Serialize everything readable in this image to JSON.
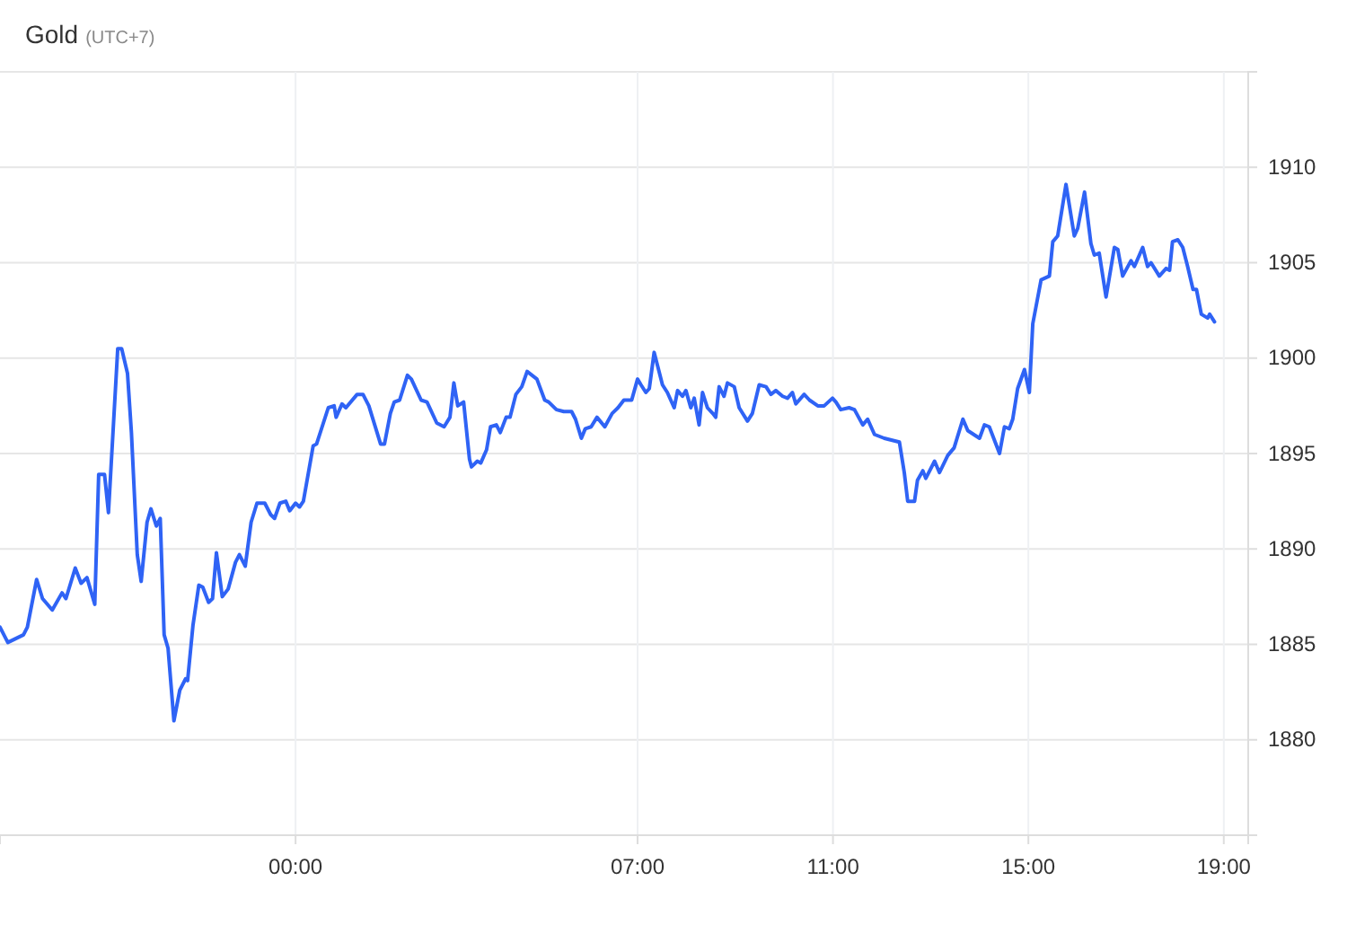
{
  "chart_data": {
    "type": "line",
    "title": "Gold",
    "subtitle": "(UTC+7)",
    "x": [
      -6.05,
      -5.89,
      -5.57,
      -5.49,
      -5.3,
      -5.18,
      -4.98,
      -4.78,
      -4.7,
      -4.51,
      -4.39,
      -4.27,
      -4.11,
      -4.03,
      -3.91,
      -3.83,
      -3.64,
      -3.56,
      -3.44,
      -3.36,
      -3.24,
      -3.16,
      -3.04,
      -2.96,
      -2.85,
      -2.77,
      -2.69,
      -2.61,
      -2.49,
      -2.37,
      -2.25,
      -2.21,
      -2.1,
      -1.98,
      -1.9,
      -1.78,
      -1.7,
      -1.62,
      -1.5,
      -1.38,
      -1.23,
      -1.15,
      -1.03,
      -0.91,
      -0.79,
      -0.63,
      -0.51,
      -0.43,
      -0.32,
      -0.2,
      -0.12,
      0,
      0.08,
      0.16,
      0.36,
      0.43,
      0.67,
      0.79,
      0.83,
      0.95,
      1.03,
      1.26,
      1.38,
      1.5,
      1.74,
      1.82,
      1.94,
      2.02,
      2.13,
      2.29,
      2.37,
      2.57,
      2.69,
      2.89,
      3.04,
      3.16,
      3.24,
      3.32,
      3.44,
      3.56,
      3.6,
      3.72,
      3.79,
      3.91,
      3.99,
      4.11,
      4.19,
      4.31,
      4.39,
      4.51,
      4.63,
      4.74,
      4.94,
      5.1,
      5.18,
      5.34,
      5.49,
      5.65,
      5.73,
      5.85,
      5.93,
      6.05,
      6.17,
      6.33,
      6.48,
      6.6,
      6.72,
      6.88,
      7,
      7.07,
      7.17,
      7.24,
      7.34,
      7.41,
      7.51,
      7.61,
      7.75,
      7.82,
      7.92,
      7.99,
      8.09,
      8.16,
      8.26,
      8.33,
      8.43,
      8.54,
      8.6,
      8.67,
      8.77,
      8.84,
      8.98,
      9.08,
      9.25,
      9.35,
      9.49,
      9.63,
      9.73,
      9.83,
      9.97,
      10.07,
      10.17,
      10.24,
      10.41,
      10.52,
      10.69,
      10.82,
      10.99,
      11.06,
      11.16,
      11.33,
      11.44,
      11.61,
      11.71,
      11.85,
      12.05,
      12.36,
      12.46,
      12.53,
      12.67,
      12.73,
      12.84,
      12.9,
      13.08,
      13.18,
      13.35,
      13.48,
      13.66,
      13.76,
      14,
      14.1,
      14.2,
      14.41,
      14.51,
      14.61,
      14.68,
      14.78,
      14.92,
      15.02,
      15.09,
      15.26,
      15.43,
      15.5,
      15.6,
      15.77,
      15.94,
      16.01,
      16.15,
      16.28,
      16.35,
      16.45,
      16.59,
      16.76,
      16.83,
      16.93,
      17.1,
      17.17,
      17.34,
      17.44,
      17.51,
      17.68,
      17.82,
      17.89,
      17.95,
      18.06,
      18.16,
      18.26,
      18.37,
      18.44,
      18.54,
      18.67,
      18.71,
      18.81
    ],
    "series": [
      {
        "color": "#2f63f5",
        "values": [
          1885.9,
          1885.1,
          1885.5,
          1885.9,
          1888.4,
          1887.4,
          1886.8,
          1887.7,
          1887.4,
          1889.0,
          1888.2,
          1888.5,
          1887.1,
          1893.9,
          1893.9,
          1891.9,
          1900.5,
          1900.5,
          1899.2,
          1896.1,
          1889.7,
          1888.3,
          1891.4,
          1892.1,
          1891.2,
          1891.6,
          1885.5,
          1884.8,
          1881.0,
          1882.6,
          1883.2,
          1883.1,
          1886.0,
          1888.1,
          1888.0,
          1887.2,
          1887.4,
          1889.8,
          1887.5,
          1887.9,
          1889.3,
          1889.7,
          1889.1,
          1891.4,
          1892.4,
          1892.4,
          1891.8,
          1891.6,
          1892.4,
          1892.5,
          1892.0,
          1892.4,
          1892.2,
          1892.5,
          1895.4,
          1895.5,
          1897.4,
          1897.5,
          1896.9,
          1897.6,
          1897.4,
          1898.1,
          1898.1,
          1897.5,
          1895.5,
          1895.5,
          1897.1,
          1897.7,
          1897.8,
          1899.1,
          1898.9,
          1897.8,
          1897.7,
          1896.6,
          1896.4,
          1896.9,
          1898.7,
          1897.5,
          1897.7,
          1894.7,
          1894.3,
          1894.6,
          1894.5,
          1895.2,
          1896.4,
          1896.5,
          1896.1,
          1896.9,
          1896.9,
          1898.1,
          1898.5,
          1899.3,
          1898.9,
          1897.8,
          1897.7,
          1897.3,
          1897.2,
          1897.2,
          1896.8,
          1895.8,
          1896.3,
          1896.4,
          1896.9,
          1896.4,
          1897.1,
          1897.4,
          1897.8,
          1897.8,
          1898.9,
          1898.6,
          1898.2,
          1898.4,
          1900.3,
          1899.6,
          1898.6,
          1898.2,
          1897.4,
          1898.3,
          1898.0,
          1898.3,
          1897.4,
          1897.9,
          1896.5,
          1898.2,
          1897.4,
          1897.1,
          1896.9,
          1898.5,
          1898.0,
          1898.7,
          1898.5,
          1897.4,
          1896.7,
          1897.1,
          1898.6,
          1898.5,
          1898.1,
          1898.3,
          1898.0,
          1897.9,
          1898.2,
          1897.6,
          1898.1,
          1897.8,
          1897.5,
          1897.5,
          1897.9,
          1897.7,
          1897.3,
          1897.4,
          1897.3,
          1896.5,
          1896.8,
          1896.0,
          1895.8,
          1895.6,
          1894.0,
          1892.5,
          1892.5,
          1893.6,
          1894.1,
          1893.7,
          1894.6,
          1894.0,
          1894.9,
          1895.3,
          1896.8,
          1896.2,
          1895.8,
          1896.5,
          1896.4,
          1895.0,
          1896.4,
          1896.3,
          1896.8,
          1898.4,
          1899.4,
          1898.2,
          1901.8,
          1904.1,
          1904.3,
          1906.1,
          1906.4,
          1909.1,
          1906.4,
          1906.8,
          1908.7,
          1906.0,
          1905.4,
          1905.5,
          1903.2,
          1905.8,
          1905.7,
          1904.3,
          1905.1,
          1904.8,
          1905.8,
          1904.8,
          1905.0,
          1904.3,
          1904.7,
          1904.6,
          1906.1,
          1906.2,
          1905.8,
          1904.8,
          1903.6,
          1903.6,
          1902.3,
          1902.1,
          1902.3,
          1901.9
        ]
      }
    ],
    "xlim": [
      -6.05,
      19.5
    ],
    "xticks": [
      {
        "value": 0,
        "label": "00:00"
      },
      {
        "value": 7,
        "label": "07:00"
      },
      {
        "value": 11,
        "label": "11:00"
      },
      {
        "value": 15,
        "label": "15:00"
      },
      {
        "value": 19,
        "label": "19:00"
      }
    ],
    "ylim": [
      1875,
      1915
    ],
    "yticks": [
      1880,
      1885,
      1890,
      1895,
      1900,
      1905,
      1910
    ],
    "grid": true,
    "marker": "none",
    "line_style": "solid"
  }
}
